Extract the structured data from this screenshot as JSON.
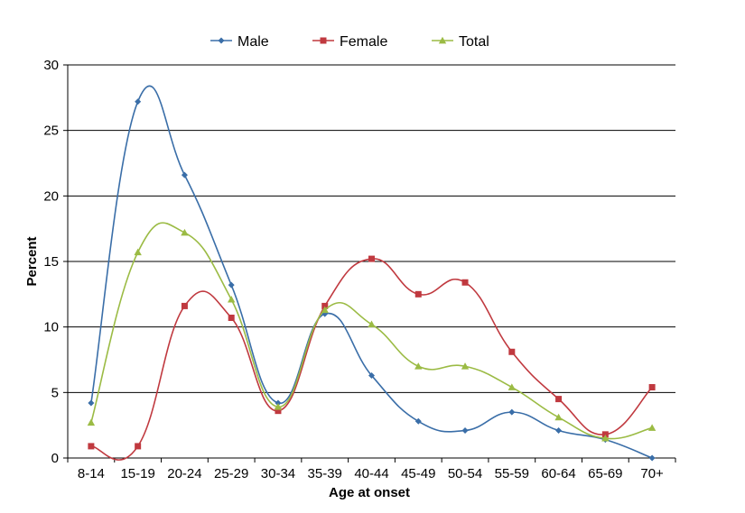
{
  "chart_data": {
    "type": "line",
    "title": "",
    "xlabel": "Age at onset",
    "ylabel": "Percent",
    "ylim": [
      0,
      30
    ],
    "yticks": [
      0,
      5,
      10,
      15,
      20,
      25,
      30
    ],
    "grid": true,
    "legend_position": "top",
    "categories": [
      "8-14",
      "15-19",
      "20-24",
      "25-29",
      "30-34",
      "35-39",
      "40-44",
      "45-49",
      "50-54",
      "55-59",
      "60-64",
      "65-69",
      "70+"
    ],
    "series": [
      {
        "name": "Male",
        "color": "#3A6EA8",
        "marker": "diamond",
        "values": [
          4.2,
          27.2,
          21.6,
          13.2,
          4.2,
          11.0,
          6.3,
          2.8,
          2.1,
          3.5,
          2.1,
          1.4,
          0.0
        ]
      },
      {
        "name": "Female",
        "color": "#C0393F",
        "marker": "square",
        "values": [
          0.9,
          0.9,
          11.6,
          10.7,
          3.6,
          11.6,
          15.2,
          12.5,
          13.4,
          8.1,
          4.5,
          1.8,
          5.4
        ]
      },
      {
        "name": "Total",
        "color": "#9BBB44",
        "marker": "triangle",
        "values": [
          2.7,
          15.7,
          17.2,
          12.1,
          3.9,
          11.3,
          10.2,
          7.0,
          7.0,
          5.4,
          3.1,
          1.5,
          2.3
        ]
      }
    ]
  }
}
